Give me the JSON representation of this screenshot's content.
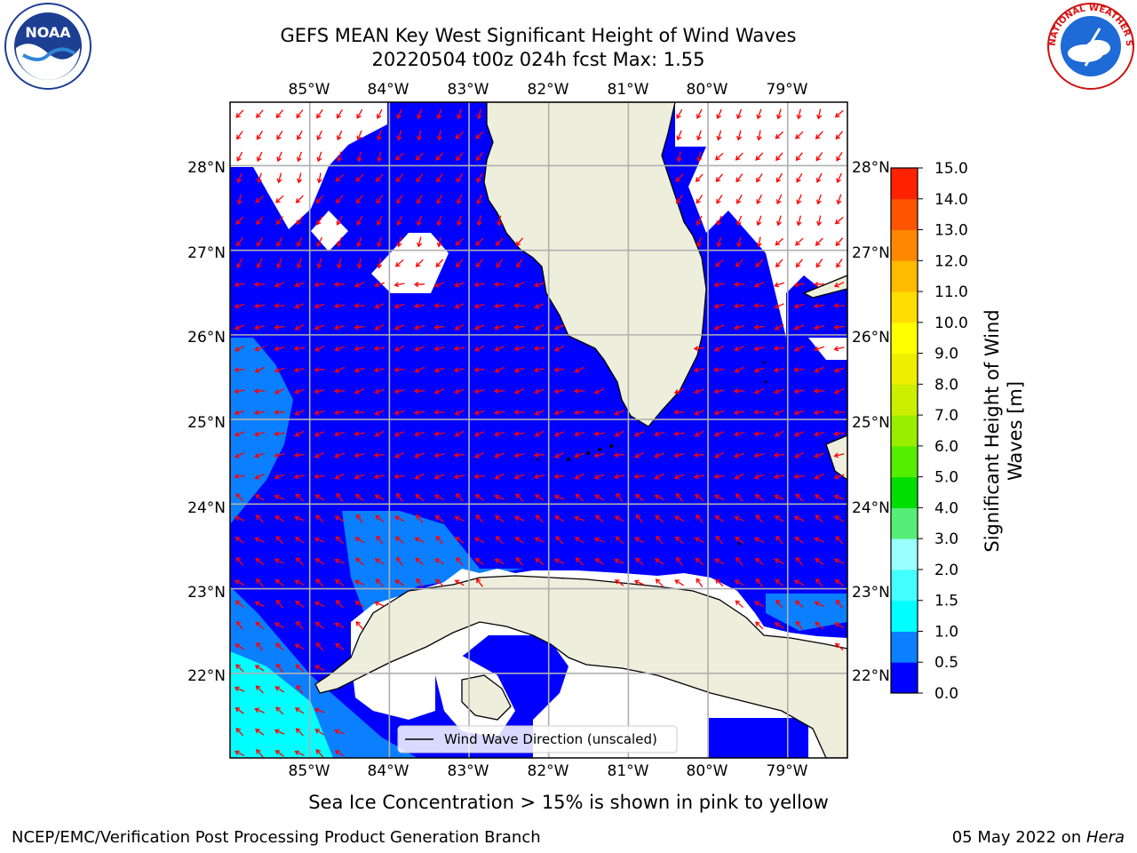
{
  "header": {
    "title_line1": "GEFS MEAN Key West Significant Height of Wind Waves",
    "title_line2": "20220504 t00z 024h fcst   Max: 1.55"
  },
  "logos": {
    "noaa": {
      "icon": "noaa-logo-icon",
      "text": "NOAA",
      "ring_text": "NATIONAL OCEANIC AND ATMOSPHERIC ADMINISTRATION · U.S. DEPARTMENT OF COMMERCE"
    },
    "nws": {
      "icon": "nws-logo-icon",
      "ring_text": "NATIONAL WEATHER SERVICE"
    }
  },
  "map": {
    "lon_range": [
      -86.0,
      -78.25
    ],
    "lat_range": [
      21.0,
      28.75
    ],
    "lon_ticks": [
      "85°W",
      "84°W",
      "83°W",
      "82°W",
      "81°W",
      "80°W",
      "79°W"
    ],
    "lat_ticks": [
      "28°N",
      "27°N",
      "26°N",
      "25°N",
      "24°N",
      "23°N",
      "22°N"
    ],
    "grid": true,
    "colors": {
      "ocean_low": "#0000ff",
      "ocean_mid": "#0a7fff",
      "ocean_cyan": "#00ffff",
      "land": "#eeeedd",
      "arrow": "#ff0000",
      "grid": "#b0b0b0"
    },
    "legend": {
      "label": "Wind Wave Direction (unscaled)",
      "position": "bottom-center"
    }
  },
  "colorbar": {
    "label": "Significant Height of Wind Waves [m]",
    "label_line1": "Significant Height of Wind",
    "label_line2": "Waves [m]",
    "ticks": [
      "15.0",
      "14.0",
      "13.0",
      "12.0",
      "11.0",
      "10.0",
      "9.0",
      "8.0",
      "7.0",
      "6.0",
      "5.0",
      "4.0",
      "3.0",
      "2.0",
      "1.5",
      "1.0",
      "0.5",
      "0.0"
    ],
    "colors_bottom_to_top": [
      "#0000ff",
      "#0a7fff",
      "#00ffff",
      "#44ffff",
      "#99ffff",
      "#55ee77",
      "#00dd00",
      "#55ee00",
      "#99ee00",
      "#ccee00",
      "#eeee00",
      "#ffff00",
      "#ffdd00",
      "#ffbb00",
      "#ff8800",
      "#ff5500",
      "#ff2200"
    ]
  },
  "footer": {
    "caption": "Sea Ice Concentration > 15% is shown in pink to yellow",
    "left": "NCEP/EMC/Verification Post Processing Product Generation Branch",
    "right_date": "05 May 2022 on ",
    "right_host": "Hera"
  }
}
